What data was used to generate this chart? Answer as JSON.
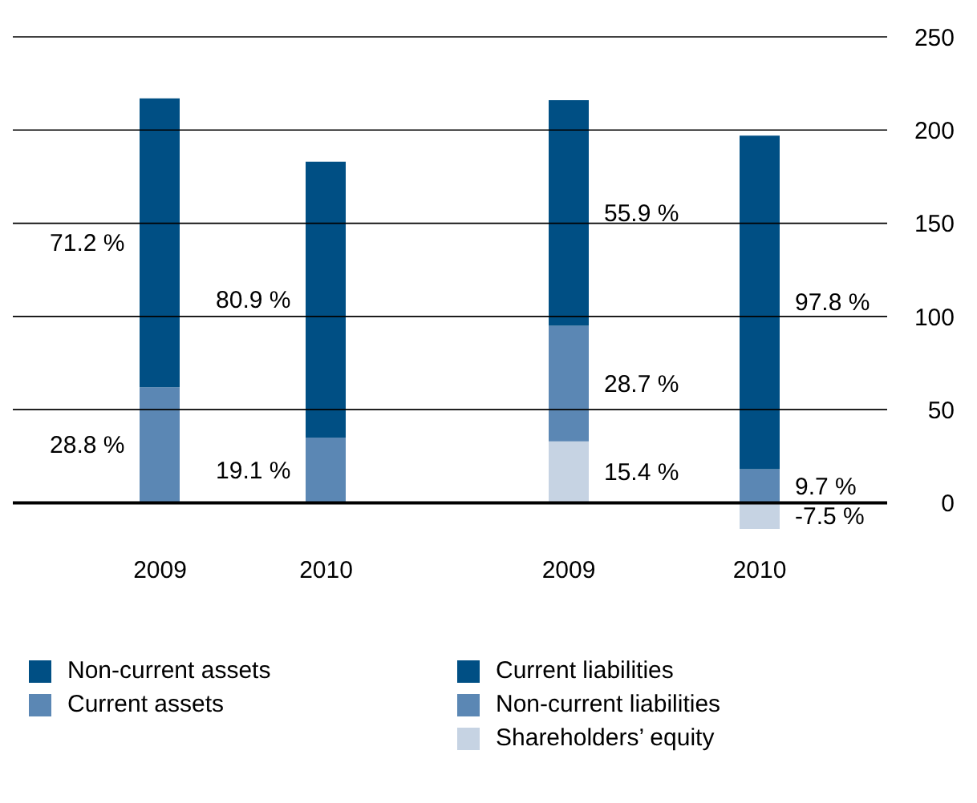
{
  "chart_data": [
    {
      "type": "bar",
      "stacked": true,
      "categories": [
        "2009",
        "2010"
      ],
      "series": [
        {
          "name": "Current assets",
          "color": "#5b87b4",
          "values": [
            62,
            35
          ]
        },
        {
          "name": "Non-current assets",
          "color": "#004f84",
          "values": [
            155,
            148
          ]
        }
      ],
      "annotations": [
        "71.2 %",
        "28.8 %",
        "80.9 %",
        "19.1 %"
      ],
      "ylim": [
        0,
        250
      ],
      "yticks": [
        0,
        50,
        100,
        150,
        200,
        250
      ],
      "grid": "y",
      "tick_labels": "x",
      "legend": "bottom"
    },
    {
      "type": "bar",
      "stacked": true,
      "categories": [
        "2009",
        "2010"
      ],
      "series": [
        {
          "name": "Shareholders’ equity",
          "color": "#c6d3e3",
          "values": [
            33,
            -14
          ]
        },
        {
          "name": "Non-current liabilities",
          "color": "#5b87b4",
          "values": [
            62,
            18
          ]
        },
        {
          "name": "Current liabilities",
          "color": "#004f84",
          "values": [
            121,
            179
          ]
        }
      ],
      "annotations": [
        "55.9 %",
        "28.7 %",
        "15.4 %",
        "97.8 %",
        "9.7 %",
        "-7.5 %"
      ],
      "ylim": [
        -14,
        250
      ],
      "yticks": [
        0,
        50,
        100,
        150,
        200,
        250
      ],
      "grid": "y",
      "legend": "bottom"
    }
  ]
}
